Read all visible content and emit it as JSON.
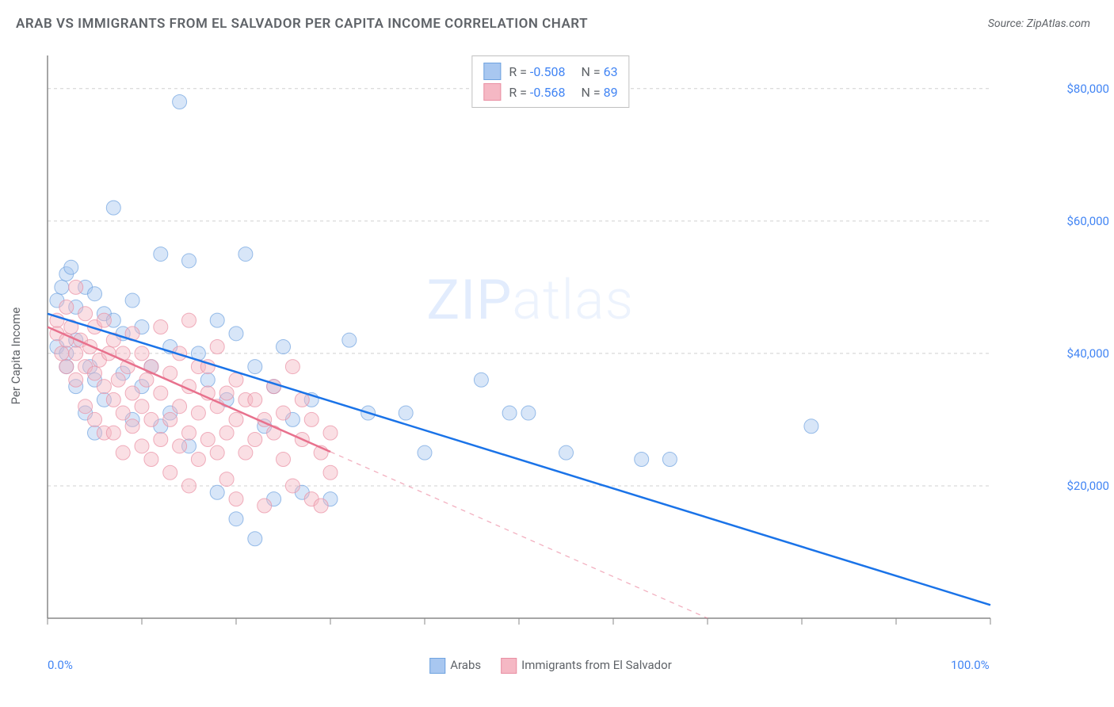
{
  "title": "ARAB VS IMMIGRANTS FROM EL SALVADOR PER CAPITA INCOME CORRELATION CHART",
  "source": "Source: ZipAtlas.com",
  "watermark": {
    "bold": "ZIP",
    "light": "atlas"
  },
  "chart": {
    "type": "scatter",
    "y_axis_label": "Per Capita Income",
    "background_color": "#ffffff",
    "grid_color": "#d0d0d0",
    "axis_color": "#888888",
    "xlim": [
      0,
      100
    ],
    "ylim": [
      0,
      85000
    ],
    "x_ticks": [
      0,
      10,
      20,
      30,
      40,
      50,
      60,
      70,
      80,
      90,
      100
    ],
    "x_tick_labels": {
      "0": "0.0%",
      "100": "100.0%"
    },
    "y_ticks": [
      20000,
      40000,
      60000,
      80000
    ],
    "y_tick_labels": {
      "20000": "$20,000",
      "40000": "$40,000",
      "60000": "$60,000",
      "80000": "$80,000"
    },
    "marker_radius": 9,
    "marker_opacity": 0.45,
    "line_width": 2.5,
    "series": [
      {
        "id": "arabs",
        "label": "Arabs",
        "fill_color": "#a8c7f0",
        "stroke_color": "#6fa3e0",
        "line_color": "#1a73e8",
        "stats": {
          "R": "-0.508",
          "N": "63"
        },
        "trend": {
          "x1": 0,
          "y1": 46000,
          "x2": 100,
          "y2": 2000,
          "solid_until": 100
        },
        "points": [
          [
            1,
            41000
          ],
          [
            1,
            48000
          ],
          [
            1.5,
            50000
          ],
          [
            2,
            52000
          ],
          [
            2,
            38000
          ],
          [
            2,
            40000
          ],
          [
            2.5,
            53000
          ],
          [
            3,
            47000
          ],
          [
            3,
            42000
          ],
          [
            3,
            35000
          ],
          [
            4,
            50000
          ],
          [
            4,
            31000
          ],
          [
            4.5,
            38000
          ],
          [
            5,
            49000
          ],
          [
            5,
            36000
          ],
          [
            5,
            28000
          ],
          [
            6,
            46000
          ],
          [
            6,
            33000
          ],
          [
            7,
            45000
          ],
          [
            7,
            62000
          ],
          [
            8,
            37000
          ],
          [
            8,
            43000
          ],
          [
            9,
            48000
          ],
          [
            9,
            30000
          ],
          [
            10,
            44000
          ],
          [
            10,
            35000
          ],
          [
            11,
            38000
          ],
          [
            12,
            55000
          ],
          [
            12,
            29000
          ],
          [
            13,
            41000
          ],
          [
            13,
            31000
          ],
          [
            14,
            78000
          ],
          [
            15,
            54000
          ],
          [
            15,
            26000
          ],
          [
            16,
            40000
          ],
          [
            17,
            36000
          ],
          [
            18,
            45000
          ],
          [
            18,
            19000
          ],
          [
            19,
            33000
          ],
          [
            20,
            43000
          ],
          [
            20,
            15000
          ],
          [
            21,
            55000
          ],
          [
            22,
            38000
          ],
          [
            22,
            12000
          ],
          [
            23,
            29000
          ],
          [
            24,
            35000
          ],
          [
            24,
            18000
          ],
          [
            25,
            41000
          ],
          [
            26,
            30000
          ],
          [
            27,
            19000
          ],
          [
            28,
            33000
          ],
          [
            30,
            18000
          ],
          [
            32,
            42000
          ],
          [
            34,
            31000
          ],
          [
            38,
            31000
          ],
          [
            40,
            25000
          ],
          [
            46,
            36000
          ],
          [
            49,
            31000
          ],
          [
            51,
            31000
          ],
          [
            55,
            25000
          ],
          [
            63,
            24000
          ],
          [
            66,
            24000
          ],
          [
            81,
            29000
          ]
        ]
      },
      {
        "id": "immigrants",
        "label": "Immigrants from El Salvador",
        "fill_color": "#f5b8c4",
        "stroke_color": "#e98fa3",
        "line_color": "#e8718d",
        "stats": {
          "R": "-0.568",
          "N": "89"
        },
        "trend": {
          "x1": 0,
          "y1": 44000,
          "x2": 70,
          "y2": 0,
          "solid_until": 30
        },
        "points": [
          [
            1,
            43000
          ],
          [
            1,
            45000
          ],
          [
            1.5,
            40000
          ],
          [
            2,
            47000
          ],
          [
            2,
            42000
          ],
          [
            2,
            38000
          ],
          [
            2.5,
            44000
          ],
          [
            3,
            50000
          ],
          [
            3,
            40000
          ],
          [
            3,
            36000
          ],
          [
            3.5,
            42000
          ],
          [
            4,
            46000
          ],
          [
            4,
            38000
          ],
          [
            4,
            32000
          ],
          [
            4.5,
            41000
          ],
          [
            5,
            44000
          ],
          [
            5,
            37000
          ],
          [
            5,
            30000
          ],
          [
            5.5,
            39000
          ],
          [
            6,
            45000
          ],
          [
            6,
            35000
          ],
          [
            6,
            28000
          ],
          [
            6.5,
            40000
          ],
          [
            7,
            42000
          ],
          [
            7,
            33000
          ],
          [
            7,
            28000
          ],
          [
            7.5,
            36000
          ],
          [
            8,
            40000
          ],
          [
            8,
            31000
          ],
          [
            8,
            25000
          ],
          [
            8.5,
            38000
          ],
          [
            9,
            34000
          ],
          [
            9,
            29000
          ],
          [
            9,
            43000
          ],
          [
            10,
            40000
          ],
          [
            10,
            32000
          ],
          [
            10,
            26000
          ],
          [
            10.5,
            36000
          ],
          [
            11,
            38000
          ],
          [
            11,
            30000
          ],
          [
            11,
            24000
          ],
          [
            12,
            44000
          ],
          [
            12,
            34000
          ],
          [
            12,
            27000
          ],
          [
            13,
            37000
          ],
          [
            13,
            30000
          ],
          [
            13,
            22000
          ],
          [
            14,
            40000
          ],
          [
            14,
            32000
          ],
          [
            14,
            26000
          ],
          [
            15,
            45000
          ],
          [
            15,
            35000
          ],
          [
            15,
            28000
          ],
          [
            15,
            20000
          ],
          [
            16,
            38000
          ],
          [
            16,
            31000
          ],
          [
            16,
            24000
          ],
          [
            17,
            34000
          ],
          [
            17,
            27000
          ],
          [
            17,
            38000
          ],
          [
            18,
            32000
          ],
          [
            18,
            25000
          ],
          [
            18,
            41000
          ],
          [
            19,
            34000
          ],
          [
            19,
            28000
          ],
          [
            19,
            21000
          ],
          [
            20,
            36000
          ],
          [
            20,
            30000
          ],
          [
            20,
            18000
          ],
          [
            21,
            33000
          ],
          [
            21,
            25000
          ],
          [
            22,
            33000
          ],
          [
            22,
            27000
          ],
          [
            23,
            30000
          ],
          [
            23,
            17000
          ],
          [
            24,
            28000
          ],
          [
            24,
            35000
          ],
          [
            25,
            31000
          ],
          [
            25,
            24000
          ],
          [
            26,
            38000
          ],
          [
            26,
            20000
          ],
          [
            27,
            27000
          ],
          [
            27,
            33000
          ],
          [
            28,
            18000
          ],
          [
            28,
            30000
          ],
          [
            29,
            25000
          ],
          [
            29,
            17000
          ],
          [
            30,
            22000
          ],
          [
            30,
            28000
          ]
        ]
      }
    ],
    "stats_box": {
      "R_label": "R =",
      "N_label": "N ="
    },
    "bottom_legend": [
      {
        "label": "Arabs",
        "fill": "#a8c7f0",
        "stroke": "#6fa3e0"
      },
      {
        "label": "Immigrants from El Salvador",
        "fill": "#f5b8c4",
        "stroke": "#e98fa3"
      }
    ]
  }
}
